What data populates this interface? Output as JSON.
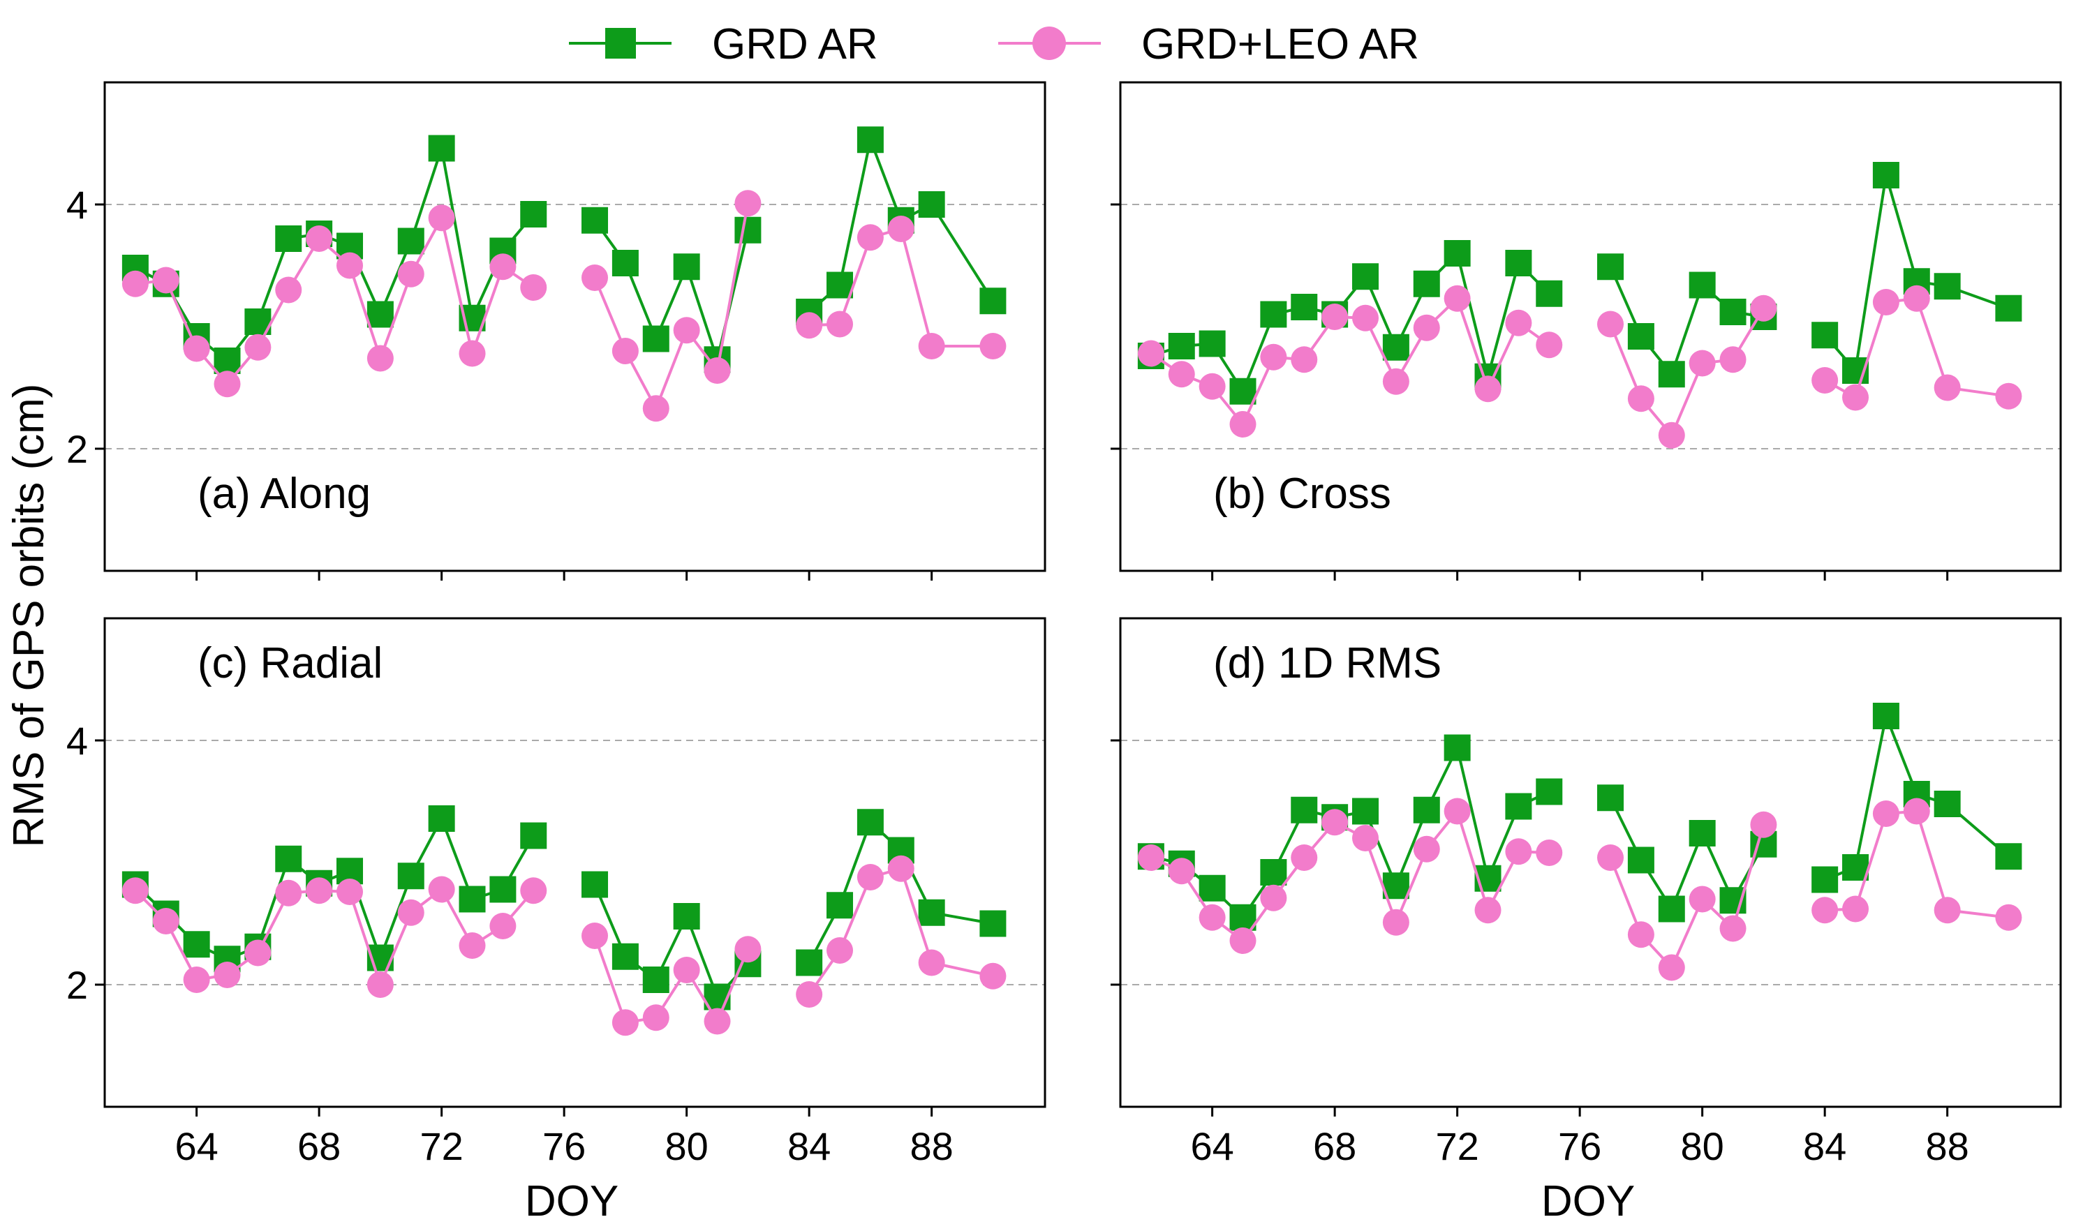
{
  "colors": {
    "grd": "#0d9c1a",
    "leo": "#f27ccb",
    "grid": "#aaaaaa",
    "axis": "#000000"
  },
  "legend": [
    {
      "key": "grd",
      "label": "GRD AR",
      "marker": "square"
    },
    {
      "key": "leo",
      "label": "GRD+LEO AR",
      "marker": "circle"
    }
  ],
  "ylabel": "RMS of GPS orbits (cm)",
  "xlabel": "DOY",
  "chart_data": [
    {
      "type": "line",
      "panel_label": "(a) Along",
      "label_position": "bottom-left",
      "x": [
        62,
        63,
        64,
        65,
        66,
        67,
        68,
        69,
        70,
        71,
        72,
        73,
        74,
        75,
        77,
        78,
        79,
        80,
        81,
        82,
        84,
        85,
        86,
        87,
        88,
        90
      ],
      "xlim": [
        61,
        91.7
      ],
      "ylim": [
        1,
        5
      ],
      "xticks": [
        64,
        68,
        72,
        76,
        80,
        84,
        88
      ],
      "yticks": [
        2,
        4
      ],
      "grid": "horizontal dashed",
      "series": [
        {
          "name": "GRD AR",
          "values": [
            3.48,
            3.35,
            2.92,
            2.72,
            3.04,
            3.72,
            3.76,
            3.66,
            3.1,
            3.7,
            4.46,
            3.07,
            3.62,
            3.92,
            3.87,
            3.52,
            2.9,
            3.49,
            2.73,
            3.79,
            3.12,
            3.34,
            4.53,
            3.87,
            4.0,
            3.21
          ]
        },
        {
          "name": "GRD+LEO AR",
          "values": [
            3.35,
            3.38,
            2.82,
            2.53,
            2.83,
            3.3,
            3.72,
            3.5,
            2.74,
            3.43,
            3.89,
            2.78,
            3.49,
            3.32,
            3.4,
            2.8,
            2.33,
            2.97,
            2.64,
            4.01,
            3.01,
            3.02,
            3.73,
            3.8,
            2.84,
            2.84
          ]
        }
      ]
    },
    {
      "type": "line",
      "panel_label": "(b) Cross",
      "label_position": "bottom-left",
      "x": [
        62,
        63,
        64,
        65,
        66,
        67,
        68,
        69,
        70,
        71,
        72,
        73,
        74,
        75,
        77,
        78,
        79,
        80,
        81,
        82,
        84,
        85,
        86,
        87,
        88,
        90
      ],
      "xlim": [
        61,
        91.7
      ],
      "ylim": [
        1,
        5
      ],
      "xticks": [
        64,
        68,
        72,
        76,
        80,
        84,
        88
      ],
      "yticks": [
        2,
        4
      ],
      "grid": "horizontal dashed",
      "series": [
        {
          "name": "GRD AR",
          "values": [
            2.76,
            2.84,
            2.86,
            2.47,
            3.1,
            3.16,
            3.1,
            3.41,
            2.83,
            3.35,
            3.6,
            2.59,
            3.52,
            3.27,
            3.49,
            2.92,
            2.61,
            3.34,
            3.12,
            3.08,
            2.93,
            2.64,
            4.24,
            3.37,
            3.33,
            3.15
          ]
        },
        {
          "name": "GRD+LEO AR",
          "values": [
            2.78,
            2.61,
            2.51,
            2.2,
            2.75,
            2.73,
            3.08,
            3.07,
            2.55,
            2.99,
            3.23,
            2.49,
            3.03,
            2.85,
            3.02,
            2.41,
            2.11,
            2.7,
            2.73,
            3.15,
            2.56,
            2.42,
            3.2,
            3.23,
            2.5,
            2.43
          ]
        }
      ]
    },
    {
      "type": "line",
      "panel_label": "(c) Radial",
      "label_position": "top-left",
      "x": [
        62,
        63,
        64,
        65,
        66,
        67,
        68,
        69,
        70,
        71,
        72,
        73,
        74,
        75,
        77,
        78,
        79,
        80,
        81,
        82,
        84,
        85,
        86,
        87,
        88,
        90
      ],
      "xlim": [
        61,
        91.7
      ],
      "ylim": [
        1,
        5
      ],
      "xticks": [
        64,
        68,
        72,
        76,
        80,
        84,
        88
      ],
      "yticks": [
        2,
        4
      ],
      "grid": "horizontal dashed",
      "series": [
        {
          "name": "GRD AR",
          "values": [
            2.82,
            2.58,
            2.33,
            2.21,
            2.31,
            3.03,
            2.83,
            2.93,
            2.22,
            2.89,
            3.36,
            2.7,
            2.78,
            3.22,
            2.82,
            2.23,
            2.04,
            2.56,
            1.9,
            2.17,
            2.18,
            2.65,
            3.33,
            3.1,
            2.59,
            2.5
          ]
        },
        {
          "name": "GRD+LEO AR",
          "values": [
            2.77,
            2.52,
            2.04,
            2.08,
            2.26,
            2.75,
            2.77,
            2.76,
            2.0,
            2.59,
            2.78,
            2.32,
            2.48,
            2.77,
            2.4,
            1.69,
            1.73,
            2.12,
            1.7,
            2.29,
            1.92,
            2.28,
            2.88,
            2.95,
            2.18,
            2.07
          ]
        }
      ]
    },
    {
      "type": "line",
      "panel_label": "(d) 1D RMS",
      "label_position": "top-left",
      "x": [
        62,
        63,
        64,
        65,
        66,
        67,
        68,
        69,
        70,
        71,
        72,
        73,
        74,
        75,
        77,
        78,
        79,
        80,
        81,
        82,
        84,
        85,
        86,
        87,
        88,
        90
      ],
      "xlim": [
        61,
        91.7
      ],
      "ylim": [
        1,
        5
      ],
      "xticks": [
        64,
        68,
        72,
        76,
        80,
        84,
        88
      ],
      "yticks": [
        2,
        4
      ],
      "grid": "horizontal dashed",
      "series": [
        {
          "name": "GRD AR",
          "values": [
            3.05,
            2.99,
            2.79,
            2.55,
            2.92,
            3.43,
            3.37,
            3.42,
            2.81,
            3.43,
            3.94,
            2.87,
            3.46,
            3.58,
            3.53,
            3.02,
            2.62,
            3.24,
            2.69,
            3.15,
            2.86,
            2.96,
            4.2,
            3.56,
            3.48,
            3.05
          ]
        },
        {
          "name": "GRD+LEO AR",
          "values": [
            3.04,
            2.93,
            2.55,
            2.36,
            2.71,
            3.04,
            3.33,
            3.2,
            2.51,
            3.11,
            3.42,
            2.61,
            3.09,
            3.08,
            3.04,
            2.41,
            2.14,
            2.7,
            2.46,
            3.31,
            2.61,
            2.62,
            3.4,
            3.42,
            2.61,
            2.55
          ]
        }
      ]
    }
  ]
}
